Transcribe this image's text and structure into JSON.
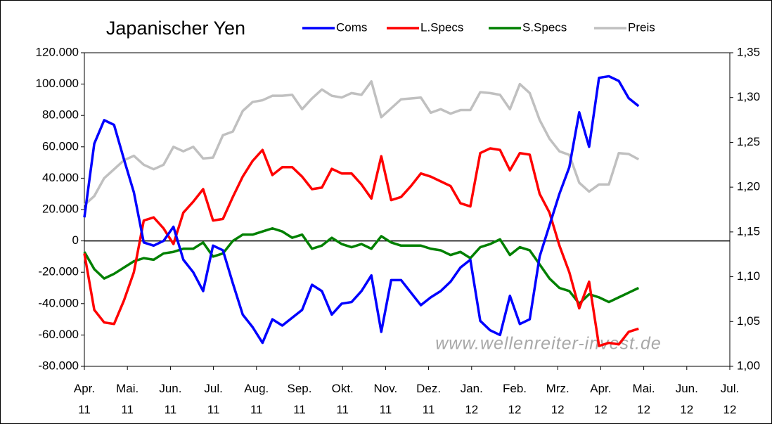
{
  "chart_data": {
    "type": "line",
    "title": "Japanischer Yen",
    "annotation": "www.wellenreiter-invest.de",
    "x": [
      0,
      0.23,
      0.46,
      0.69,
      0.92,
      1.15,
      1.38,
      1.61,
      1.84,
      2.07,
      2.3,
      2.53,
      2.76,
      2.99,
      3.22,
      3.45,
      3.68,
      3.91,
      4.14,
      4.37,
      4.6,
      4.83,
      5.06,
      5.29,
      5.52,
      5.75,
      5.98,
      6.21,
      6.44,
      6.67,
      6.9,
      7.13,
      7.36,
      7.59,
      7.82,
      8.05,
      8.28,
      8.51,
      8.74,
      8.97,
      9.2,
      9.43,
      9.66,
      9.89,
      10.12,
      10.35,
      10.58,
      10.81,
      11.04,
      11.27,
      11.5,
      11.73,
      11.96,
      12.19,
      12.42,
      12.65,
      12.88
    ],
    "xlim": [
      0,
      15
    ],
    "xticks": [
      {
        "value": 0,
        "label": "Apr.\n11"
      },
      {
        "value": 1,
        "label": "Mai.\n11"
      },
      {
        "value": 2,
        "label": "Jun.\n11"
      },
      {
        "value": 3,
        "label": "Jul.\n11"
      },
      {
        "value": 4,
        "label": "Aug.\n11"
      },
      {
        "value": 5,
        "label": "Sep.\n11"
      },
      {
        "value": 6,
        "label": "Okt.\n11"
      },
      {
        "value": 7,
        "label": "Nov.\n11"
      },
      {
        "value": 8,
        "label": "Dez.\n11"
      },
      {
        "value": 9,
        "label": "Jan.\n12"
      },
      {
        "value": 10,
        "label": "Feb.\n12"
      },
      {
        "value": 11,
        "label": "Mrz.\n12"
      },
      {
        "value": 12,
        "label": "Apr.\n12"
      },
      {
        "value": 13,
        "label": "Mai.\n12"
      },
      {
        "value": 14,
        "label": "Jun.\n12"
      },
      {
        "value": 15,
        "label": "Jul.\n12"
      }
    ],
    "ylim": [
      -80000,
      120000
    ],
    "yticks": [
      {
        "value": -80000,
        "label": "-80.000"
      },
      {
        "value": -60000,
        "label": "-60.000"
      },
      {
        "value": -40000,
        "label": "-40.000"
      },
      {
        "value": -20000,
        "label": "-20.000"
      },
      0,
      {
        "value": 20000,
        "label": "20.000"
      },
      {
        "value": 40000,
        "label": "40.000"
      },
      {
        "value": 60000,
        "label": "60.000"
      },
      {
        "value": 80000,
        "label": "80.000"
      },
      {
        "value": 100000,
        "label": "100.000"
      },
      {
        "value": 120000,
        "label": "120.000"
      }
    ],
    "y2lim": [
      1.0,
      1.35
    ],
    "y2ticks": [
      {
        "value": 1.0,
        "label": "1,00"
      },
      {
        "value": 1.05,
        "label": "1,05"
      },
      {
        "value": 1.1,
        "label": "1,10"
      },
      {
        "value": 1.15,
        "label": "1,15"
      },
      {
        "value": 1.2,
        "label": "1,20"
      },
      {
        "value": 1.25,
        "label": "1,25"
      },
      {
        "value": 1.3,
        "label": "1,30"
      },
      {
        "value": 1.35,
        "label": "1,35"
      }
    ],
    "series": [
      {
        "name": "Coms",
        "color": "#0000ff",
        "values": [
          15000,
          62000,
          77000,
          74000,
          52000,
          31000,
          -1000,
          -3000,
          0,
          9000,
          -12000,
          -20000,
          -32000,
          -3000,
          -6000,
          -27000,
          -47000,
          -55000,
          -65000,
          -50000,
          -54000,
          -49000,
          -44000,
          -28000,
          -32000,
          -47000,
          -40000,
          -39000,
          -32000,
          -22000,
          -58000,
          -25000,
          -25000,
          -33000,
          -41000,
          -36000,
          -32000,
          -26000,
          -17000,
          -12000,
          -51000,
          -57000,
          -60000,
          -35000,
          -53000,
          -50000,
          -10000,
          10000,
          30000,
          47000,
          82000,
          60000,
          104000,
          105000,
          102000,
          91000,
          86000
        ]
      },
      {
        "name": "L.Specs",
        "color": "#ff0000",
        "values": [
          -8000,
          -44000,
          -52000,
          -53000,
          -38000,
          -20000,
          13000,
          15000,
          8000,
          -2000,
          18000,
          25000,
          33000,
          13000,
          14000,
          28000,
          41000,
          51000,
          58000,
          42000,
          47000,
          47000,
          41000,
          33000,
          34000,
          46000,
          43000,
          43000,
          36000,
          27000,
          54000,
          26000,
          28000,
          35000,
          43000,
          41000,
          38000,
          35000,
          24000,
          22000,
          56000,
          59000,
          58000,
          45000,
          56000,
          55000,
          30000,
          18000,
          -3000,
          -20000,
          -43000,
          -26000,
          -67000,
          -65000,
          -66000,
          -58000,
          -56000
        ]
      },
      {
        "name": "S.Specs",
        "color": "#008000",
        "values": [
          -7000,
          -18000,
          -24000,
          -21000,
          -17000,
          -13000,
          -11000,
          -12000,
          -8000,
          -7000,
          -5000,
          -5000,
          -1000,
          -10000,
          -8000,
          0,
          4000,
          4000,
          6000,
          8000,
          6000,
          2000,
          4000,
          -5000,
          -3000,
          2000,
          -2000,
          -4000,
          -2000,
          -5000,
          3000,
          -1000,
          -3000,
          -3000,
          -3000,
          -5000,
          -6000,
          -9000,
          -7000,
          -11000,
          -4000,
          -2000,
          1000,
          -9000,
          -4000,
          -6000,
          -15000,
          -24000,
          -30000,
          -32000,
          -40000,
          -34000,
          -36000,
          -39000,
          -36000,
          -33000,
          -30000
        ]
      },
      {
        "name": "Preis",
        "color": "#c0c0c0",
        "axis": "y2",
        "values": [
          1.18,
          1.19,
          1.21,
          1.22,
          1.23,
          1.235,
          1.225,
          1.22,
          1.225,
          1.245,
          1.24,
          1.245,
          1.232,
          1.233,
          1.258,
          1.262,
          1.285,
          1.295,
          1.297,
          1.302,
          1.302,
          1.303,
          1.287,
          1.299,
          1.309,
          1.302,
          1.3,
          1.305,
          1.303,
          1.318,
          1.278,
          1.288,
          1.298,
          1.299,
          1.3,
          1.283,
          1.287,
          1.282,
          1.286,
          1.286,
          1.306,
          1.305,
          1.303,
          1.287,
          1.315,
          1.305,
          1.275,
          1.254,
          1.24,
          1.236,
          1.205,
          1.195,
          1.203,
          1.203,
          1.238,
          1.237,
          1.231
        ]
      }
    ]
  }
}
